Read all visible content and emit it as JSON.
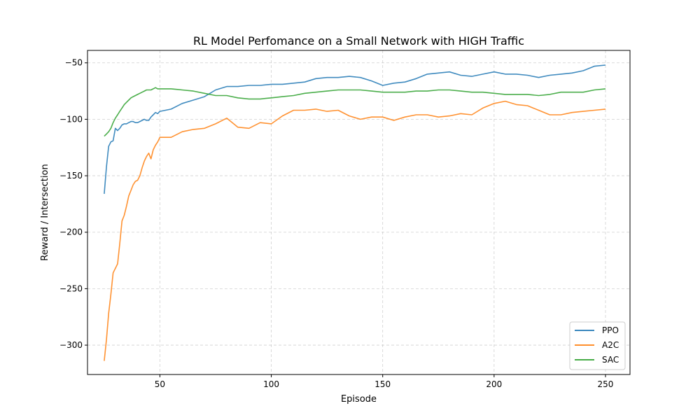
{
  "chart_data": {
    "type": "line",
    "title": "RL Model Perfomance on a Small Network with HIGH Traffic",
    "xlabel": "Episode",
    "ylabel": "Reward / Intersection",
    "xlim": [
      17.5,
      261
    ],
    "ylim": [
      -326,
      -39
    ],
    "xticks": [
      50,
      100,
      150,
      200,
      250
    ],
    "yticks": [
      -50,
      -100,
      -150,
      -200,
      -250,
      -300
    ],
    "grid": true,
    "legend_position": "lower-right",
    "series": [
      {
        "name": "PPO",
        "color": "#1f77b4",
        "x": [
          25,
          26,
          27,
          28,
          29,
          30,
          31,
          32,
          33,
          34,
          35,
          36,
          37,
          38,
          39,
          40,
          41,
          42,
          43,
          44,
          45,
          46,
          47,
          48,
          49,
          50,
          55,
          60,
          65,
          70,
          75,
          80,
          85,
          90,
          95,
          100,
          105,
          110,
          115,
          120,
          125,
          130,
          135,
          140,
          145,
          150,
          155,
          160,
          165,
          170,
          175,
          180,
          185,
          190,
          195,
          200,
          205,
          210,
          215,
          220,
          225,
          230,
          235,
          240,
          245,
          250
        ],
        "y": [
          -166,
          -142,
          -124,
          -120,
          -119,
          -108,
          -110,
          -108,
          -105,
          -104,
          -104,
          -103,
          -102,
          -102,
          -103,
          -103,
          -102,
          -101,
          -100,
          -101,
          -101,
          -98,
          -96,
          -94,
          -95,
          -93,
          -91,
          -86,
          -83,
          -80,
          -74,
          -71,
          -71,
          -70,
          -70,
          -69,
          -69,
          -68,
          -67,
          -64,
          -63,
          -63,
          -62,
          -63,
          -66,
          -70,
          -68,
          -67,
          -64,
          -60,
          -59,
          -58,
          -61,
          -62,
          -60,
          -58,
          -60,
          -60,
          -61,
          -63,
          -61,
          -60,
          -59,
          -57,
          -53,
          -52
        ]
      },
      {
        "name": "A2C",
        "color": "#ff7f0e",
        "x": [
          25,
          26,
          27,
          28,
          29,
          30,
          31,
          32,
          33,
          34,
          35,
          36,
          37,
          38,
          39,
          40,
          41,
          42,
          43,
          44,
          45,
          46,
          47,
          48,
          49,
          50,
          55,
          60,
          65,
          70,
          75,
          80,
          85,
          90,
          95,
          100,
          105,
          110,
          115,
          120,
          125,
          130,
          135,
          140,
          145,
          150,
          155,
          160,
          165,
          170,
          175,
          180,
          185,
          190,
          195,
          200,
          205,
          210,
          215,
          220,
          225,
          230,
          235,
          240,
          245,
          250
        ],
        "y": [
          -314,
          -295,
          -272,
          -255,
          -236,
          -232,
          -228,
          -210,
          -190,
          -185,
          -177,
          -168,
          -163,
          -158,
          -155,
          -154,
          -150,
          -143,
          -137,
          -133,
          -130,
          -135,
          -127,
          -123,
          -120,
          -116,
          -116,
          -111,
          -109,
          -108,
          -104,
          -99,
          -107,
          -108,
          -103,
          -104,
          -97,
          -92,
          -92,
          -91,
          -93,
          -92,
          -97,
          -100,
          -98,
          -98,
          -101,
          -98,
          -96,
          -96,
          -98,
          -97,
          -95,
          -96,
          -90,
          -86,
          -84,
          -87,
          -88,
          -92,
          -96,
          -96,
          -94,
          -93,
          -92,
          -91
        ]
      },
      {
        "name": "SAC",
        "color": "#2ca02c",
        "x": [
          25,
          26,
          27,
          28,
          29,
          30,
          31,
          32,
          33,
          34,
          35,
          36,
          37,
          38,
          39,
          40,
          41,
          42,
          43,
          44,
          45,
          46,
          47,
          48,
          49,
          50,
          55,
          60,
          65,
          70,
          75,
          80,
          85,
          90,
          95,
          100,
          105,
          110,
          115,
          120,
          125,
          130,
          135,
          140,
          145,
          150,
          155,
          160,
          165,
          170,
          175,
          180,
          185,
          190,
          195,
          200,
          205,
          210,
          215,
          220,
          225,
          230,
          235,
          240,
          245,
          250
        ],
        "y": [
          -115,
          -113,
          -111,
          -108,
          -103,
          -99,
          -96,
          -93,
          -90,
          -87,
          -85,
          -83,
          -81,
          -80,
          -79,
          -78,
          -77,
          -76,
          -75,
          -74,
          -74,
          -74,
          -73,
          -72,
          -73,
          -73,
          -73,
          -74,
          -75,
          -77,
          -79,
          -79,
          -81,
          -82,
          -82,
          -81,
          -80,
          -79,
          -77,
          -76,
          -75,
          -74,
          -74,
          -74,
          -75,
          -76,
          -76,
          -76,
          -75,
          -75,
          -74,
          -74,
          -75,
          -76,
          -76,
          -77,
          -78,
          -78,
          -78,
          -79,
          -78,
          -76,
          -76,
          -76,
          -74,
          -73
        ]
      }
    ]
  }
}
